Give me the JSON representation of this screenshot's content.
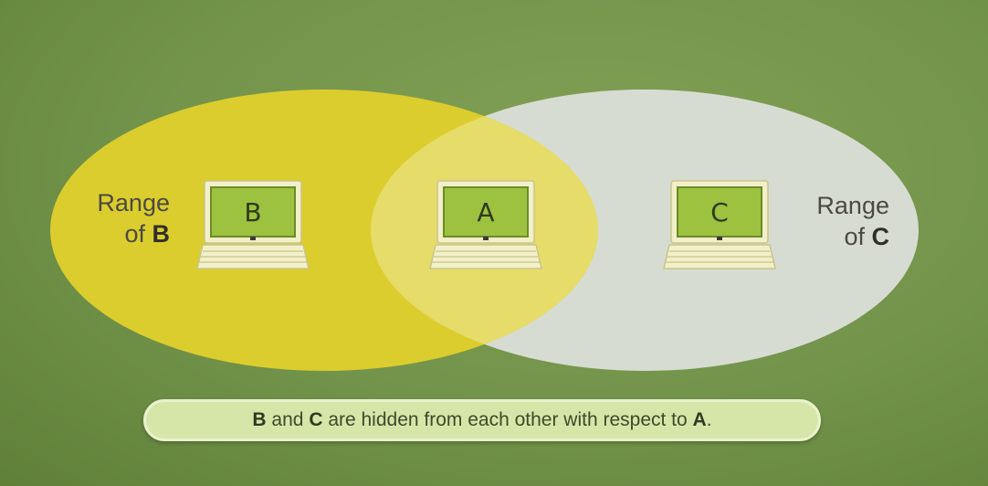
{
  "nodes": {
    "b": {
      "letter": "B"
    },
    "a": {
      "letter": "A"
    },
    "c": {
      "letter": "C"
    }
  },
  "labels": {
    "range_b": {
      "line1": "Range",
      "line2_prefix": "of ",
      "line2_bold": "B"
    },
    "range_c": {
      "line1": "Range",
      "line2_prefix": "of ",
      "line2_bold": "C"
    }
  },
  "caption": {
    "b": "B",
    "and": " and ",
    "c": "C",
    "middle": " are hidden from each other with respect to ",
    "a": "A",
    "end": "."
  },
  "colors": {
    "range_b": "#dccd2e",
    "range_c": "#d7dcd2",
    "laptop_screen": "#9cc240",
    "background": "#6e8f45"
  }
}
